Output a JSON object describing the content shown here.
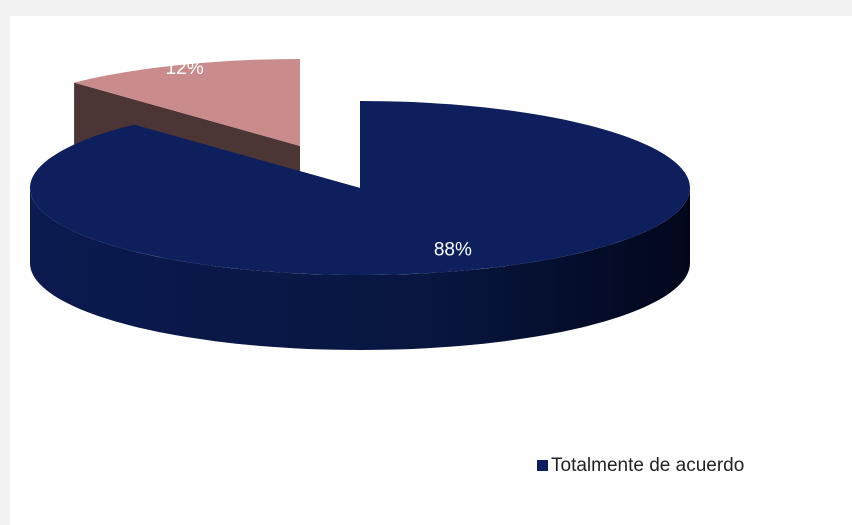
{
  "chart_data": {
    "type": "pie",
    "categories": [
      "Totalmente de acuerdo",
      null
    ],
    "values": [
      88,
      12
    ],
    "value_labels": [
      "88%",
      "12%"
    ],
    "colors": [
      "#0e1f5e",
      "#c98b8b"
    ],
    "legend": "bottom-right"
  }
}
